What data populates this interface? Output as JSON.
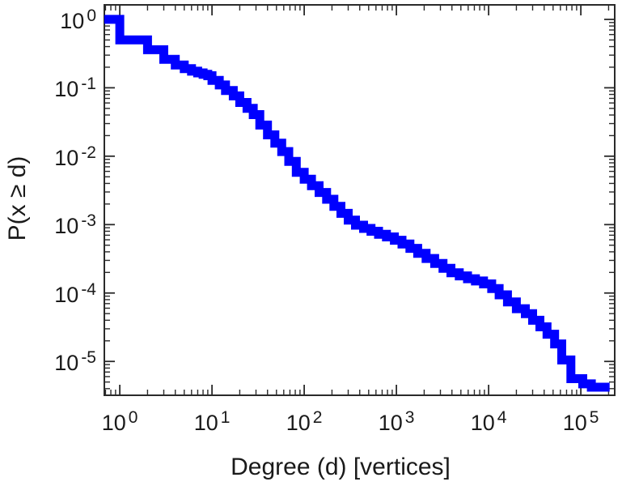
{
  "figure": {
    "title": "",
    "background_color": "#ffffff"
  },
  "chart_data": {
    "type": "line",
    "subtype": "step-ccdf",
    "scale": "log-log",
    "title": "",
    "xlabel": "Degree (d) [vertices]",
    "ylabel": "P(x ≥ d)",
    "tick_base": "10",
    "x_tick_exponents": [
      0,
      1,
      2,
      3,
      4,
      5
    ],
    "y_tick_exponents": [
      0,
      -1,
      -2,
      -3,
      -4,
      -5
    ],
    "xlim": [
      0.68,
      233000
    ],
    "ylim": [
      3.2e-06,
      1.63
    ],
    "grid": false,
    "legend": null,
    "line_color": "#0000ff",
    "line_width": 11,
    "axis_color": "#2a2a2a",
    "points": [
      [
        1,
        1.0
      ],
      [
        2,
        0.5
      ],
      [
        3,
        0.36
      ],
      [
        4,
        0.26
      ],
      [
        5,
        0.215
      ],
      [
        6,
        0.19
      ],
      [
        7,
        0.175
      ],
      [
        8,
        0.165
      ],
      [
        9,
        0.157
      ],
      [
        10,
        0.15
      ],
      [
        12,
        0.128
      ],
      [
        14,
        0.11
      ],
      [
        17,
        0.091
      ],
      [
        20,
        0.076
      ],
      [
        24,
        0.061
      ],
      [
        28,
        0.05
      ],
      [
        33,
        0.0405
      ],
      [
        40,
        0.0285
      ],
      [
        48,
        0.0205
      ],
      [
        57,
        0.0155
      ],
      [
        68,
        0.0117
      ],
      [
        82,
        0.0084
      ],
      [
        100,
        0.0058
      ],
      [
        120,
        0.0046
      ],
      [
        145,
        0.0037
      ],
      [
        175,
        0.00295
      ],
      [
        210,
        0.00235
      ],
      [
        250,
        0.00185
      ],
      [
        300,
        0.00146
      ],
      [
        360,
        0.00116
      ],
      [
        440,
        0.00098
      ],
      [
        530,
        0.00088
      ],
      [
        640,
        0.0008
      ],
      [
        780,
        0.00072
      ],
      [
        950,
        0.00066
      ],
      [
        1150,
        0.00059
      ],
      [
        1400,
        0.00052
      ],
      [
        1700,
        0.00045
      ],
      [
        2100,
        0.00038
      ],
      [
        2600,
        0.00032
      ],
      [
        3200,
        0.00027
      ],
      [
        3900,
        0.00023
      ],
      [
        4800,
        0.000198
      ],
      [
        5900,
        0.000178
      ],
      [
        7200,
        0.000162
      ],
      [
        8800,
        0.00015
      ],
      [
        10800,
        0.000136
      ],
      [
        13000,
        0.000116
      ],
      [
        16000,
        9.4e-05
      ],
      [
        20000,
        7.4e-05
      ],
      [
        25000,
        5.9e-05
      ],
      [
        30000,
        5e-05
      ],
      [
        36000,
        4e-05
      ],
      [
        43000,
        3.2e-05
      ],
      [
        52000,
        2.5e-05
      ],
      [
        62000,
        1.8e-05
      ],
      [
        78000,
        1.05e-05
      ],
      [
        105000,
        5.6e-06
      ],
      [
        130000,
        4.7e-06
      ],
      [
        150000,
        4.2e-06
      ],
      [
        205000,
        4.2e-06
      ]
    ]
  }
}
